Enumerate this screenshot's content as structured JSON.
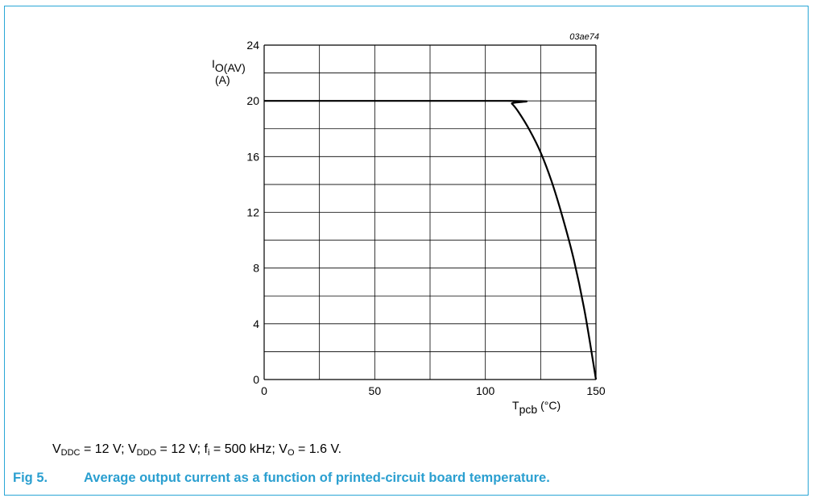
{
  "figure": {
    "code": "03ae74",
    "number": "Fig 5.",
    "caption": "Average output current as a function of printed-circuit board temperature.",
    "conditions": {
      "vddc_sym": "V",
      "vddc_sub": "DDC",
      "vddc_val": " = 12 V; ",
      "vddo_sym": "V",
      "vddo_sub": "DDO",
      "vddo_val": " = 12 V; ",
      "fi_sym": "f",
      "fi_sub": "i",
      "fi_val": " = 500 kHz; ",
      "vo_sym": "V",
      "vo_sub": "O",
      "vo_val": " = 1.6 V."
    },
    "frame_color": "#2aa6d6",
    "caption_color": "#2a9fd0"
  },
  "chart_data": {
    "type": "line",
    "ylabel_main": "I",
    "ylabel_sub": "O(AV)",
    "ylabel_unit": "(A)",
    "xlabel_main": "T",
    "xlabel_sub": "pcb",
    "xlabel_unit": "(°C)",
    "xlim": [
      0,
      150
    ],
    "ylim": [
      0,
      24
    ],
    "x_ticks": [
      0,
      50,
      100,
      150
    ],
    "y_ticks": [
      0,
      4,
      8,
      12,
      16,
      20,
      24
    ],
    "x_grid_step": 25,
    "y_grid_step": 2,
    "grid": true,
    "series": [
      {
        "x": [
          0,
          110,
          112,
          115,
          120,
          125,
          130,
          135,
          140,
          145,
          150
        ],
        "y": [
          20,
          20,
          19.8,
          19.2,
          17.9,
          16.3,
          14.2,
          11.6,
          8.6,
          4.8,
          0
        ]
      }
    ]
  }
}
